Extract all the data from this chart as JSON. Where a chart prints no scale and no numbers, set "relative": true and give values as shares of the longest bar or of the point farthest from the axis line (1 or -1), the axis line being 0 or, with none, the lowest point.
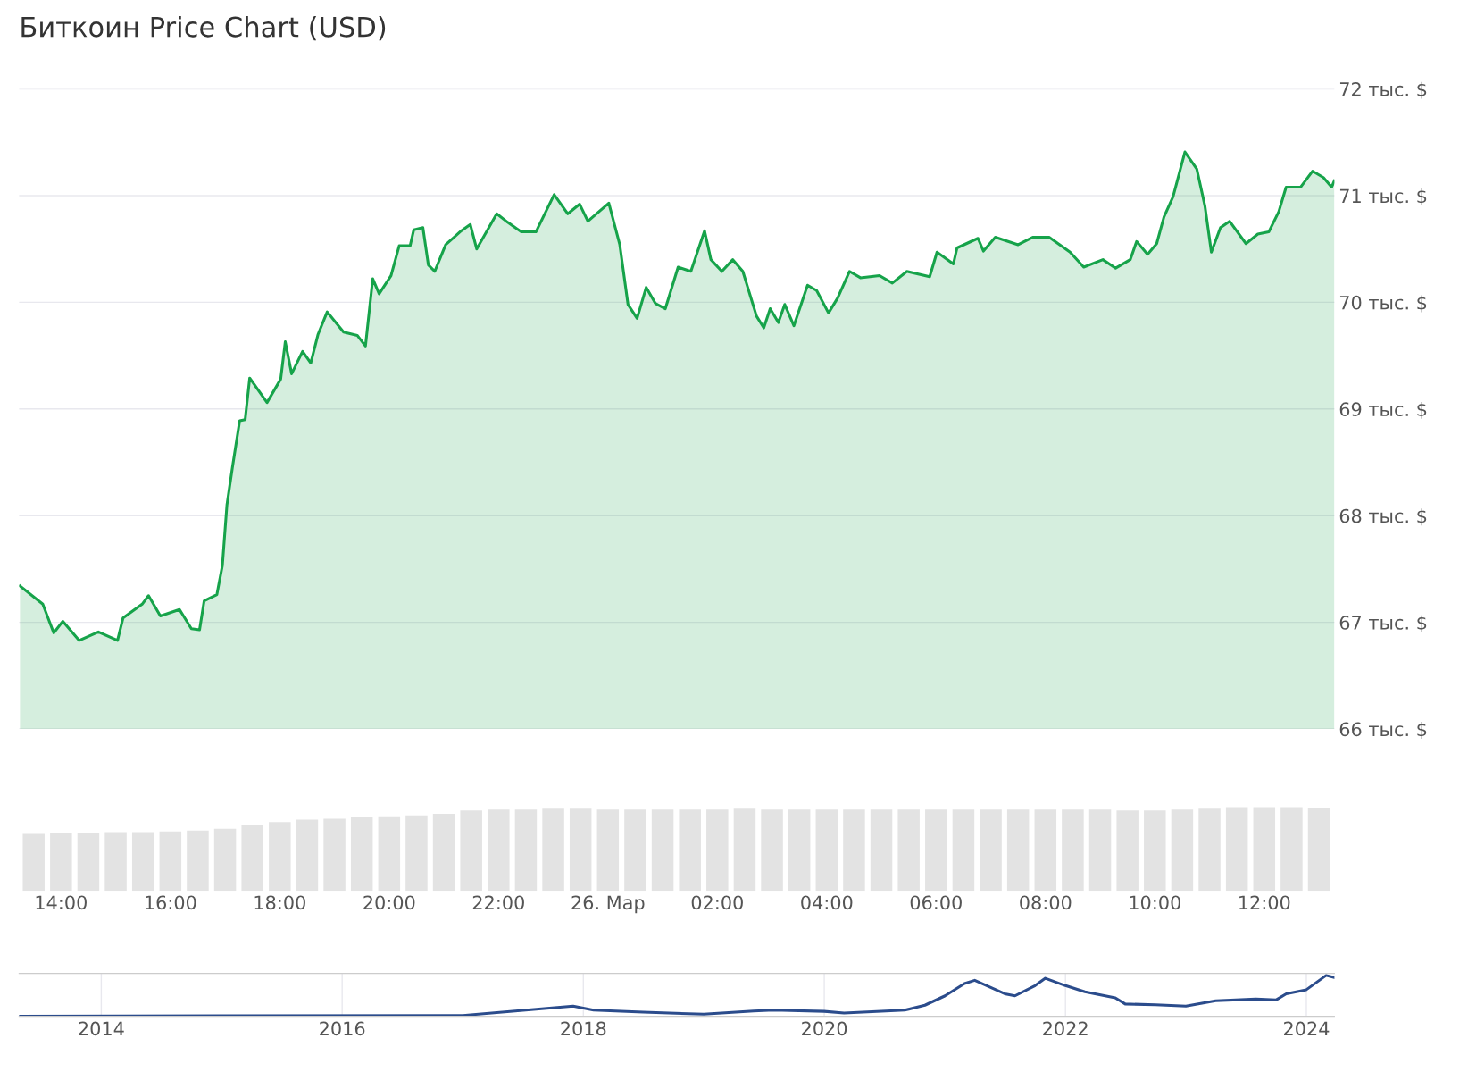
{
  "chart_data": [
    {
      "type": "area",
      "title": "Биткоин Price Chart (USD)",
      "xlim": [
        "2024-03-25T13:14",
        "2024-03-26T13:17"
      ],
      "ylim": [
        66,
        72
      ],
      "grid": "y",
      "tick_labels": "y",
      "legend": false,
      "yticks": [
        {
          "value": 66,
          "label": "66 тыс. $"
        },
        {
          "value": 67,
          "label": "67 тыс. $"
        },
        {
          "value": 68,
          "label": "68 тыс. $"
        },
        {
          "value": 69,
          "label": "69 тыс. $"
        },
        {
          "value": 70,
          "label": "70 тыс. $"
        },
        {
          "value": 71,
          "label": "71 тыс. $"
        },
        {
          "value": 72,
          "label": "72 тыс. $"
        }
      ],
      "series": [
        {
          "color": "#16a34a",
          "x": [
            "2024-03-25T13:15",
            "2024-03-25T13:40",
            "2024-03-25T13:52",
            "2024-03-25T14:02",
            "2024-03-25T14:20",
            "2024-03-25T14:41",
            "2024-03-25T15:02",
            "2024-03-25T15:08",
            "2024-03-25T15:29",
            "2024-03-25T15:36",
            "2024-03-25T15:49",
            "2024-03-25T16:10",
            "2024-03-25T16:23",
            "2024-03-25T16:32",
            "2024-03-25T16:37",
            "2024-03-25T16:51",
            "2024-03-25T16:57",
            "2024-03-25T17:02",
            "2024-03-25T17:08",
            "2024-03-25T17:16",
            "2024-03-25T17:22",
            "2024-03-25T17:27",
            "2024-03-25T17:46",
            "2024-03-25T18:01",
            "2024-03-25T18:06",
            "2024-03-25T18:13",
            "2024-03-25T18:25",
            "2024-03-25T18:34",
            "2024-03-25T18:42",
            "2024-03-25T18:52",
            "2024-03-25T19:10",
            "2024-03-25T19:25",
            "2024-03-25T19:34",
            "2024-03-25T19:42",
            "2024-03-25T19:49",
            "2024-03-25T20:02",
            "2024-03-25T20:11",
            "2024-03-25T20:23",
            "2024-03-25T20:27",
            "2024-03-25T20:37",
            "2024-03-25T20:43",
            "2024-03-25T20:50",
            "2024-03-25T21:02",
            "2024-03-25T21:19",
            "2024-03-25T21:29",
            "2024-03-25T21:36",
            "2024-03-25T21:58",
            "2024-03-25T22:10",
            "2024-03-25T22:25",
            "2024-03-25T22:41",
            "2024-03-25T23:01",
            "2024-03-25T23:16",
            "2024-03-25T23:29",
            "2024-03-25T23:38",
            "2024-03-26T00:01",
            "2024-03-26T00:13",
            "2024-03-26T00:22",
            "2024-03-26T00:32",
            "2024-03-26T00:42",
            "2024-03-26T00:52",
            "2024-03-26T01:03",
            "2024-03-26T01:17",
            "2024-03-26T01:31",
            "2024-03-26T01:46",
            "2024-03-26T01:53",
            "2024-03-26T02:05",
            "2024-03-26T02:17",
            "2024-03-26T02:28",
            "2024-03-26T02:43",
            "2024-03-26T02:51",
            "2024-03-26T02:58",
            "2024-03-26T03:07",
            "2024-03-26T03:14",
            "2024-03-26T03:24",
            "2024-03-26T03:39",
            "2024-03-26T03:49",
            "2024-03-26T04:02",
            "2024-03-26T04:12",
            "2024-03-26T04:25",
            "2024-03-26T04:37",
            "2024-03-26T04:58",
            "2024-03-26T05:12",
            "2024-03-26T05:28",
            "2024-03-26T05:53",
            "2024-03-26T06:01",
            "2024-03-26T06:19",
            "2024-03-26T06:23",
            "2024-03-26T06:46",
            "2024-03-26T06:52",
            "2024-03-26T07:05",
            "2024-03-26T07:30",
            "2024-03-26T07:46",
            "2024-03-26T08:04",
            "2024-03-26T08:27",
            "2024-03-26T08:42",
            "2024-03-26T09:03",
            "2024-03-26T09:17",
            "2024-03-26T09:33",
            "2024-03-26T09:40",
            "2024-03-26T09:52",
            "2024-03-26T10:02",
            "2024-03-26T10:10",
            "2024-03-26T10:20",
            "2024-03-26T10:33",
            "2024-03-26T10:46",
            "2024-03-26T10:55",
            "2024-03-26T11:02",
            "2024-03-26T11:12",
            "2024-03-26T11:22",
            "2024-03-26T11:40",
            "2024-03-26T11:53",
            "2024-03-26T12:05",
            "2024-03-26T12:16",
            "2024-03-26T12:24",
            "2024-03-26T12:40",
            "2024-03-26T12:53",
            "2024-03-26T13:05",
            "2024-03-26T13:14",
            "2024-03-26T13:17"
          ],
          "values": [
            67.34,
            67.17,
            66.9,
            67.01,
            66.83,
            66.91,
            66.83,
            67.04,
            67.17,
            67.25,
            67.06,
            67.12,
            66.94,
            66.93,
            67.2,
            67.26,
            67.53,
            68.1,
            68.45,
            68.89,
            68.9,
            69.29,
            69.06,
            69.28,
            69.63,
            69.33,
            69.54,
            69.43,
            69.7,
            69.91,
            69.72,
            69.69,
            69.59,
            70.22,
            70.08,
            70.25,
            70.53,
            70.53,
            70.68,
            70.7,
            70.35,
            70.29,
            70.54,
            70.67,
            70.73,
            70.5,
            70.83,
            70.75,
            70.66,
            70.66,
            71.01,
            70.83,
            70.92,
            70.76,
            70.93,
            70.54,
            69.98,
            69.85,
            70.14,
            69.99,
            69.94,
            70.33,
            70.29,
            70.67,
            70.4,
            70.29,
            70.4,
            70.29,
            69.87,
            69.76,
            69.94,
            69.81,
            69.98,
            69.78,
            70.16,
            70.11,
            69.9,
            70.04,
            70.29,
            70.23,
            70.25,
            70.18,
            70.29,
            70.24,
            70.47,
            70.36,
            70.51,
            70.6,
            70.48,
            70.61,
            70.54,
            70.61,
            70.61,
            70.47,
            70.33,
            70.4,
            70.32,
            70.4,
            70.57,
            70.45,
            70.55,
            70.8,
            70.99,
            71.41,
            71.25,
            70.9,
            70.47,
            70.7,
            70.76,
            70.55,
            70.64,
            70.66,
            70.85,
            71.08,
            71.08,
            71.23,
            71.17,
            71.08,
            71.14
          ]
        }
      ]
    },
    {
      "type": "bar",
      "relative": true,
      "xlim": [
        "2024-03-25T13:14",
        "2024-03-26T13:17"
      ],
      "tick_labels": "x",
      "xticks": [
        {
          "value": "2024-03-25T14:00",
          "label": "14:00"
        },
        {
          "value": "2024-03-25T16:00",
          "label": "16:00"
        },
        {
          "value": "2024-03-25T18:00",
          "label": "18:00"
        },
        {
          "value": "2024-03-25T20:00",
          "label": "20:00"
        },
        {
          "value": "2024-03-25T22:00",
          "label": "22:00"
        },
        {
          "value": "2024-03-26T00:00",
          "label": "26. Мар"
        },
        {
          "value": "2024-03-26T02:00",
          "label": "02:00"
        },
        {
          "value": "2024-03-26T04:00",
          "label": "04:00"
        },
        {
          "value": "2024-03-26T06:00",
          "label": "06:00"
        },
        {
          "value": "2024-03-26T08:00",
          "label": "08:00"
        },
        {
          "value": "2024-03-26T10:00",
          "label": "10:00"
        },
        {
          "value": "2024-03-26T12:00",
          "label": "12:00"
        }
      ],
      "series": [
        {
          "color": "#e3e3e3",
          "x": [
            "2024-03-25T13:30",
            "2024-03-25T14:00",
            "2024-03-25T14:30",
            "2024-03-25T15:00",
            "2024-03-25T15:30",
            "2024-03-25T16:00",
            "2024-03-25T16:30",
            "2024-03-25T17:00",
            "2024-03-25T17:30",
            "2024-03-25T18:00",
            "2024-03-25T18:30",
            "2024-03-25T19:00",
            "2024-03-25T19:30",
            "2024-03-25T20:00",
            "2024-03-25T20:30",
            "2024-03-25T21:00",
            "2024-03-25T21:30",
            "2024-03-25T22:00",
            "2024-03-25T22:30",
            "2024-03-25T23:00",
            "2024-03-25T23:30",
            "2024-03-26T00:00",
            "2024-03-26T00:30",
            "2024-03-26T01:00",
            "2024-03-26T01:30",
            "2024-03-26T02:00",
            "2024-03-26T02:30",
            "2024-03-26T03:00",
            "2024-03-26T03:30",
            "2024-03-26T04:00",
            "2024-03-26T04:30",
            "2024-03-26T05:00",
            "2024-03-26T05:30",
            "2024-03-26T06:00",
            "2024-03-26T06:30",
            "2024-03-26T07:00",
            "2024-03-26T07:30",
            "2024-03-26T08:00",
            "2024-03-26T08:30",
            "2024-03-26T09:00",
            "2024-03-26T09:30",
            "2024-03-26T10:00",
            "2024-03-26T10:30",
            "2024-03-26T11:00",
            "2024-03-26T11:30",
            "2024-03-26T12:00",
            "2024-03-26T12:30",
            "2024-03-26T13:00"
          ],
          "values": [
            0.68,
            0.69,
            0.69,
            0.7,
            0.7,
            0.71,
            0.72,
            0.74,
            0.78,
            0.82,
            0.85,
            0.86,
            0.88,
            0.89,
            0.9,
            0.92,
            0.96,
            0.97,
            0.97,
            0.98,
            0.98,
            0.97,
            0.97,
            0.97,
            0.97,
            0.97,
            0.98,
            0.97,
            0.97,
            0.97,
            0.97,
            0.97,
            0.97,
            0.97,
            0.97,
            0.97,
            0.97,
            0.97,
            0.97,
            0.97,
            0.96,
            0.96,
            0.97,
            0.98,
            1.0,
            1.0,
            1.0,
            0.99
          ]
        }
      ]
    },
    {
      "type": "line",
      "relative": true,
      "xlim": [
        "2013-04-27",
        "2024-03-26"
      ],
      "xticks": [
        {
          "value": "2014-01-01",
          "label": "2014"
        },
        {
          "value": "2016-01-01",
          "label": "2016"
        },
        {
          "value": "2018-01-01",
          "label": "2018"
        },
        {
          "value": "2020-01-01",
          "label": "2020"
        },
        {
          "value": "2022-01-01",
          "label": "2022"
        },
        {
          "value": "2024-01-01",
          "label": "2024"
        }
      ],
      "grid": "x",
      "tick_labels": "x",
      "series": [
        {
          "color": "#2b4c8c",
          "x": [
            "2013-04-27",
            "2015-01-01",
            "2017-01-01",
            "2017-12-01",
            "2018-02-01",
            "2018-07-01",
            "2019-01-01",
            "2019-06-01",
            "2019-08-01",
            "2020-01-01",
            "2020-03-01",
            "2020-09-01",
            "2020-11-01",
            "2021-01-01",
            "2021-03-01",
            "2021-04-01",
            "2021-07-01",
            "2021-08-01",
            "2021-10-01",
            "2021-11-01",
            "2022-01-01",
            "2022-03-01",
            "2022-06-01",
            "2022-07-01",
            "2022-10-01",
            "2023-01-01",
            "2023-04-01",
            "2023-08-01",
            "2023-10-01",
            "2023-11-01",
            "2024-01-01",
            "2024-03-01",
            "2024-03-26"
          ],
          "values": [
            0,
            0.01,
            0.02,
            0.25,
            0.15,
            0.1,
            0.05,
            0.13,
            0.15,
            0.12,
            0.08,
            0.15,
            0.27,
            0.5,
            0.8,
            0.88,
            0.55,
            0.5,
            0.75,
            0.93,
            0.75,
            0.6,
            0.45,
            0.3,
            0.28,
            0.25,
            0.38,
            0.42,
            0.4,
            0.55,
            0.65,
            1.0,
            0.95
          ]
        }
      ]
    }
  ]
}
